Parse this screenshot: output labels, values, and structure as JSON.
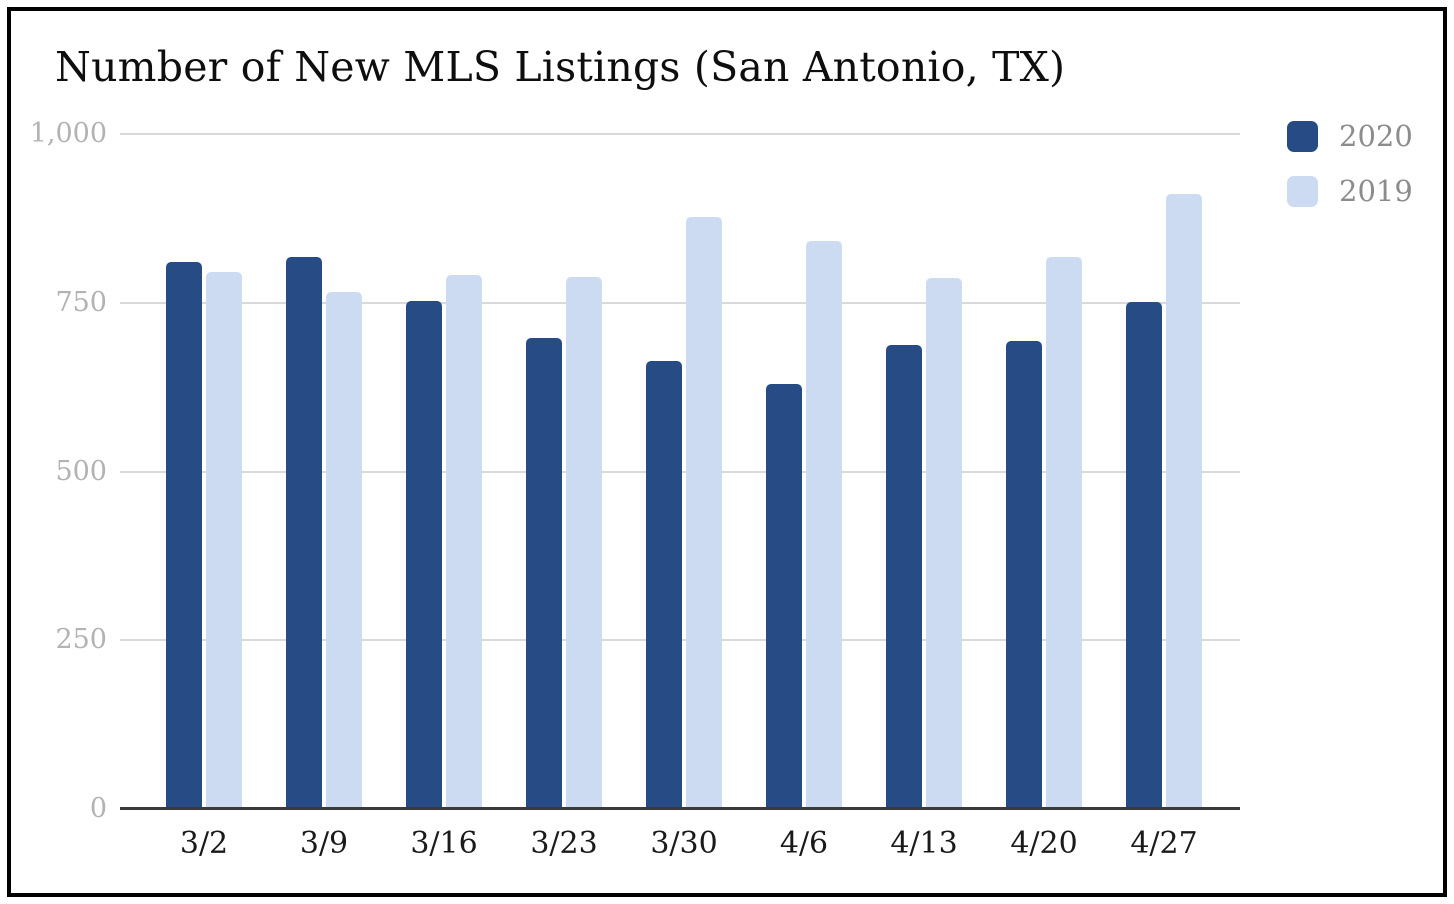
{
  "chart_data": {
    "type": "bar",
    "title": "Number of New MLS Listings (San Antonio, TX)",
    "categories": [
      "3/2",
      "3/9",
      "3/16",
      "3/23",
      "3/30",
      "4/6",
      "4/13",
      "4/20",
      "4/27"
    ],
    "series": [
      {
        "name": "2020",
        "color": "#274b85",
        "values": [
          810,
          818,
          753,
          698,
          663,
          630,
          688,
          694,
          751
        ]
      },
      {
        "name": "2019",
        "color": "#ccdaf2",
        "values": [
          795,
          766,
          791,
          788,
          877,
          842,
          787,
          818,
          911
        ]
      }
    ],
    "xlabel": "",
    "ylabel": "",
    "ylim": [
      0,
      1000
    ],
    "yticks": [
      {
        "value": 1000,
        "label": "1,000"
      },
      {
        "value": 750,
        "label": "750"
      },
      {
        "value": 500,
        "label": "500"
      },
      {
        "value": 250,
        "label": "250"
      },
      {
        "value": 0,
        "label": "0"
      }
    ],
    "grid": "horizontal",
    "legend_position": "top-right"
  },
  "colors": {
    "series_2020": "#274b85",
    "series_2019": "#ccdaf2",
    "gridline": "#d9d9d9",
    "axis_line": "#3a3a3a",
    "y_tick_label": "#b3b3b3",
    "x_tick_label": "#1a1a1a",
    "legend_label": "#8c8c8c",
    "title": "#0e0e0e",
    "frame_border": "#000000",
    "background": "#ffffff"
  }
}
